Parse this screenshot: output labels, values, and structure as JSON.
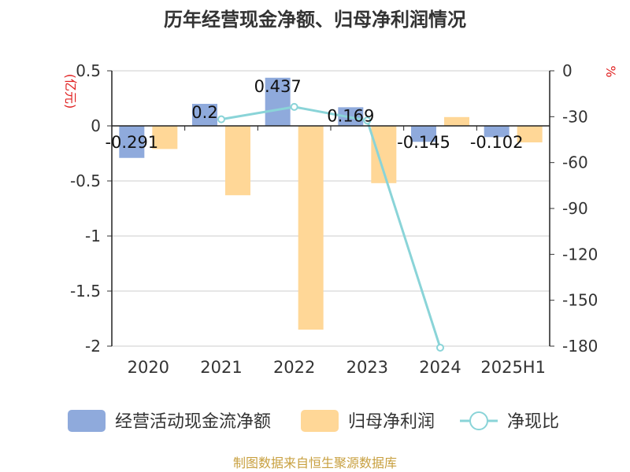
{
  "chart_data": {
    "type": "bar",
    "title": "历年经营现金净额、归母净利润情况",
    "categories": [
      "2020",
      "2021",
      "2022",
      "2023",
      "2024",
      "2025H1"
    ],
    "series": [
      {
        "name": "经营活动现金流净额",
        "kind": "bar",
        "axis": "left",
        "color": "#8faadc",
        "values": [
          -0.291,
          0.2,
          0.437,
          0.169,
          -0.145,
          -0.102
        ],
        "labels": [
          "-0.291",
          "0.2",
          "0.437",
          "0.169",
          "-0.145",
          "-0.102"
        ]
      },
      {
        "name": "归母净利润",
        "kind": "bar",
        "axis": "left",
        "color": "#ffd797",
        "values": [
          -0.21,
          -0.63,
          -1.85,
          -0.52,
          0.08,
          -0.15
        ]
      },
      {
        "name": "净现比",
        "kind": "line",
        "axis": "right",
        "color": "#8ad4d8",
        "values": [
          null,
          -31.7,
          -23.6,
          -32.5,
          -181,
          null
        ]
      }
    ],
    "y_left": {
      "unit": "(亿元)",
      "ylim": [
        -2,
        0.5
      ],
      "ticks": [
        0.5,
        0,
        -0.5,
        -1,
        -1.5,
        -2
      ],
      "tick_labels": [
        "0.5",
        "0",
        "-0.5",
        "-1",
        "-1.5",
        "-2"
      ]
    },
    "y_right": {
      "unit": "%",
      "ylim": [
        -180,
        0
      ],
      "ticks": [
        0,
        -30,
        -60,
        -90,
        -120,
        -150,
        -180
      ],
      "tick_labels": [
        "0",
        "-30",
        "-60",
        "-90",
        "-120",
        "-150",
        "-180"
      ]
    },
    "grid": true,
    "legend_position": "bottom",
    "source": "制图数据来自恒生聚源数据库"
  }
}
